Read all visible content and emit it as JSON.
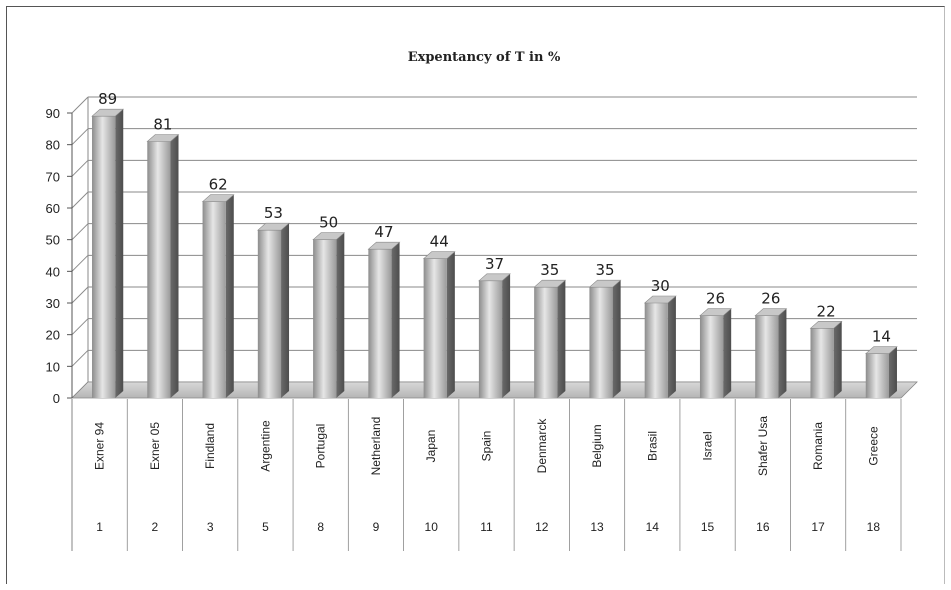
{
  "chart_data": {
    "type": "bar",
    "title": "Expentancy of T in  %",
    "xlabel": "",
    "ylabel": "",
    "ylim": [
      0,
      90
    ],
    "yticks": [
      0,
      10,
      20,
      30,
      40,
      50,
      60,
      70,
      80,
      90
    ],
    "grid": true,
    "legend": "none",
    "categories": [
      "Exner 94",
      "Exner 05",
      "Findland",
      "Argentine",
      "Portugal",
      "Netherland",
      "Japan",
      "Spain",
      "Denmarck",
      "Belgium",
      "Brasil",
      "Israel",
      "Shafer Usa",
      "Romania",
      "Greece"
    ],
    "category_numbers": [
      "1",
      "2",
      "3",
      "5",
      "8",
      "9",
      "10",
      "11",
      "12",
      "13",
      "14",
      "15",
      "16",
      "17",
      "18"
    ],
    "values": [
      89,
      81,
      62,
      53,
      50,
      47,
      44,
      37,
      35,
      35,
      30,
      26,
      26,
      22,
      14
    ],
    "bar_color": "#a9a9a9"
  }
}
